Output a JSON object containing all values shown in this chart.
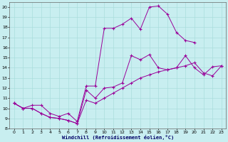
{
  "xlabel": "Windchill (Refroidissement éolien,°C)",
  "background_color": "#c8eef0",
  "grid_color": "#aadddd",
  "line_color": "#990099",
  "xlim": [
    -0.5,
    23.5
  ],
  "ylim": [
    8,
    20.5
  ],
  "xticks": [
    0,
    1,
    2,
    3,
    4,
    5,
    6,
    7,
    8,
    9,
    10,
    11,
    12,
    13,
    14,
    15,
    16,
    17,
    18,
    19,
    20,
    21,
    22,
    23
  ],
  "yticks": [
    8,
    9,
    10,
    11,
    12,
    13,
    14,
    15,
    16,
    17,
    18,
    19,
    20
  ],
  "series1_x": [
    0,
    1,
    2,
    3,
    4,
    5,
    6,
    7,
    8,
    9,
    10,
    11,
    12,
    13,
    14,
    15,
    16,
    17,
    18,
    19,
    20,
    21,
    22,
    23
  ],
  "series1_y": [
    10.5,
    10.0,
    10.0,
    9.5,
    9.1,
    9.0,
    8.8,
    8.5,
    11.8,
    11.0,
    12.0,
    12.1,
    12.5,
    15.2,
    14.8,
    15.3,
    14.0,
    13.8,
    14.0,
    15.2,
    14.0,
    13.3,
    14.1,
    14.2
  ],
  "series2_x": [
    0,
    1,
    2,
    3,
    4,
    5,
    6,
    7,
    8,
    9,
    10,
    11,
    12,
    13,
    14,
    15,
    16,
    17,
    18,
    19,
    20
  ],
  "series2_y": [
    10.5,
    10.0,
    10.3,
    10.3,
    9.5,
    9.2,
    9.5,
    8.7,
    12.2,
    12.2,
    17.9,
    17.9,
    18.3,
    18.9,
    17.8,
    20.0,
    20.1,
    19.3,
    17.5,
    16.7,
    16.5
  ],
  "series3_x": [
    0,
    1,
    2,
    3,
    4,
    5,
    6,
    7,
    8,
    9,
    10,
    11,
    12,
    13,
    14,
    15,
    16,
    17,
    18,
    19,
    20,
    21,
    22,
    23
  ],
  "series3_y": [
    10.5,
    10.0,
    10.0,
    9.5,
    9.1,
    9.0,
    8.8,
    8.5,
    10.8,
    10.5,
    11.0,
    11.5,
    12.0,
    12.5,
    13.0,
    13.3,
    13.6,
    13.8,
    14.0,
    14.2,
    14.5,
    13.5,
    13.2,
    14.2
  ]
}
